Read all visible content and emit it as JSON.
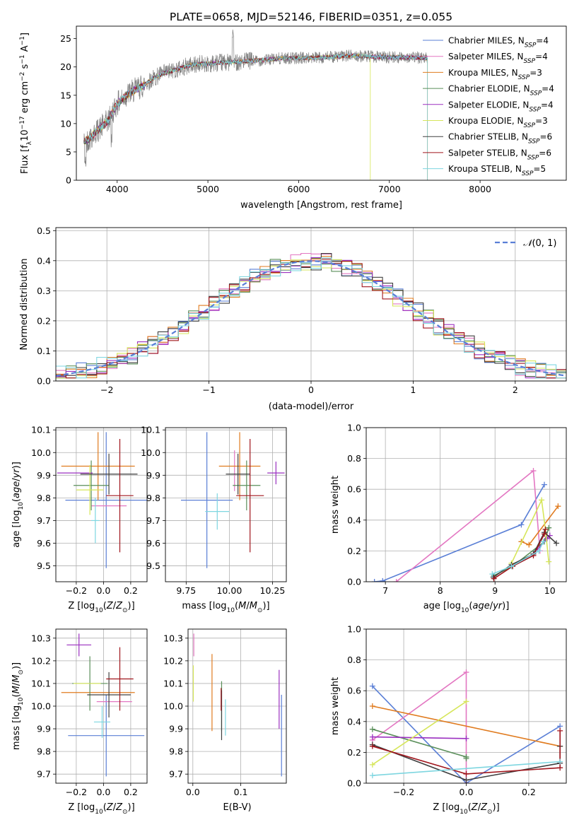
{
  "figure": {
    "title": "PLATE=0658, MJD=52146, FIBERID=0351, z=0.055"
  },
  "models": [
    {
      "label": "Chabrier MILES, N_SSP=4",
      "imf": "Chabrier",
      "lib": "MILES",
      "nssp": "4",
      "color": "#5a7fd6"
    },
    {
      "label": "Salpeter MILES, N_SSP=4",
      "imf": "Salpeter",
      "lib": "MILES",
      "nssp": "4",
      "color": "#e377c2"
    },
    {
      "label": "Kroupa MILES, N_SSP=3",
      "imf": "Kroupa",
      "lib": "MILES",
      "nssp": "3",
      "color": "#e07b1f"
    },
    {
      "label": "Chabrier ELODIE, N_SSP=4",
      "imf": "Chabrier",
      "lib": "ELODIE",
      "nssp": "4",
      "color": "#5a8f5a"
    },
    {
      "label": "Salpeter ELODIE, N_SSP=4",
      "imf": "Salpeter",
      "lib": "ELODIE",
      "nssp": "4",
      "color": "#9b30c0"
    },
    {
      "label": "Kroupa ELODIE, N_SSP=3",
      "imf": "Kroupa",
      "lib": "ELODIE",
      "nssp": "3",
      "color": "#d6e65a"
    },
    {
      "label": "Chabrier STELIB, N_SSP=6",
      "imf": "Chabrier",
      "lib": "STELIB",
      "nssp": "6",
      "color": "#404040"
    },
    {
      "label": "Salpeter STELIB, N_SSP=6",
      "imf": "Salpeter",
      "lib": "STELIB",
      "nssp": "6",
      "color": "#a0151c"
    },
    {
      "label": "Kroupa STELIB, N_SSP=5",
      "imf": "Kroupa",
      "lib": "STELIB",
      "nssp": "5",
      "color": "#7ed6e0"
    }
  ],
  "chart_data": [
    {
      "id": "spectrum",
      "type": "line",
      "xlabel": "wavelength [Angstrom, rest frame]",
      "ylabel": "Flux [f_λ10^-17 erg cm^-2 s^-1 A^-1]",
      "xlim": [
        3550,
        8950
      ],
      "ylim": [
        0,
        27.2
      ],
      "xticks": [
        4000,
        5000,
        6000,
        7000,
        8000
      ],
      "yticks": [
        0,
        5,
        10,
        15,
        20,
        25
      ],
      "grid": false,
      "legend": "top-right",
      "data_color": "#808080",
      "continuum": [
        [
          3620,
          6.5
        ],
        [
          3700,
          7.5
        ],
        [
          3800,
          9.0
        ],
        [
          3900,
          10.5
        ],
        [
          4000,
          13.5
        ],
        [
          4100,
          15.0
        ],
        [
          4200,
          16.0
        ],
        [
          4300,
          16.8
        ],
        [
          4400,
          18.0
        ],
        [
          4500,
          18.8
        ],
        [
          4600,
          19.3
        ],
        [
          4700,
          19.8
        ],
        [
          4800,
          20.3
        ],
        [
          4900,
          20.5
        ],
        [
          5000,
          20.6
        ],
        [
          5200,
          20.8
        ],
        [
          5400,
          21.0
        ],
        [
          5600,
          21.2
        ],
        [
          5800,
          21.5
        ],
        [
          6000,
          21.6
        ],
        [
          6200,
          21.6
        ],
        [
          6400,
          21.8
        ],
        [
          6600,
          22.0
        ],
        [
          6800,
          21.8
        ],
        [
          7000,
          21.7
        ],
        [
          7200,
          21.7
        ],
        [
          7400,
          21.6
        ]
      ],
      "model_drops": [
        null,
        null,
        7420,
        null,
        null,
        6790,
        null,
        null,
        7420
      ],
      "data_end": 7420
    },
    {
      "id": "residuals",
      "type": "histogram",
      "xlabel": "(data-model)/error",
      "ylabel": "Normed distribution",
      "xlim": [
        -2.5,
        2.5
      ],
      "ylim": [
        0,
        0.51
      ],
      "xticks": [
        -2,
        -1,
        0,
        1,
        2
      ],
      "yticks": [
        0.0,
        0.1,
        0.2,
        0.3,
        0.4,
        0.5
      ],
      "grid": true,
      "legend": "top-right",
      "reference_label": "N(0,1)",
      "reference_color": "#5a7fd6",
      "bin_width": 0.1
    },
    {
      "id": "age-vs-Z",
      "type": "scatter",
      "xlabel": "Z [log10(Z/Z☉)]",
      "ylabel": "age [log10(age/yr)]",
      "xlim": [
        -0.35,
        0.32
      ],
      "ylim": [
        9.43,
        10.11
      ],
      "xticks": [
        -0.2,
        0.0,
        0.2
      ],
      "xticklabels": [
        "−0.2",
        "0.0",
        "0.2"
      ],
      "yticks": [
        9.5,
        9.6,
        9.7,
        9.8,
        9.9,
        10.0,
        10.1
      ],
      "yticklabels": [
        "9.5",
        "9.6",
        "9.7",
        "9.8",
        "9.9",
        "10.0",
        "10.1"
      ],
      "grid": true,
      "points": [
        {
          "x": 0.02,
          "xerr": 0.3,
          "y": 9.79,
          "yerr": 0.3
        },
        {
          "x": 0.04,
          "xerr": 0.13,
          "y": 9.765,
          "yerr": 0.0
        },
        {
          "x": -0.04,
          "xerr": 0.27,
          "y": 9.94,
          "yerr": 0.15
        },
        {
          "x": -0.09,
          "xerr": 0.13,
          "y": 9.855,
          "yerr": 0.11
        },
        {
          "x": -0.21,
          "xerr": 0.13,
          "y": 9.91,
          "yerr": 0.0
        },
        {
          "x": -0.1,
          "xerr": 0.1,
          "y": 9.835,
          "yerr": 0.11
        },
        {
          "x": 0.04,
          "xerr": 0.21,
          "y": 9.905,
          "yerr": 0.09
        },
        {
          "x": 0.12,
          "xerr": 0.1,
          "y": 9.81,
          "yerr": 0.25
        },
        {
          "x": -0.06,
          "xerr": 0.03,
          "y": 9.7,
          "yerr": 0.1
        }
      ]
    },
    {
      "id": "age-vs-mass",
      "type": "scatter",
      "xlabel": "mass [log10(M/M☉)]",
      "ylabel": "",
      "xlim": [
        9.63,
        10.33
      ],
      "ylim": [
        9.43,
        10.11
      ],
      "xticks": [
        9.75,
        10.0,
        10.25
      ],
      "xticklabels": [
        "9.75",
        "10.00",
        "10.25"
      ],
      "yticks": [
        9.5,
        9.6,
        9.7,
        9.8,
        9.9,
        10.0,
        10.1
      ],
      "yticklabels": [
        "9.5",
        "9.6",
        "9.7",
        "9.8",
        "9.9",
        "10.0",
        "10.1"
      ],
      "grid": true,
      "points": [
        {
          "x": 9.87,
          "xerr": 0.15,
          "y": 9.79,
          "yerr": 0.3
        },
        {
          "x": 10.03,
          "xerr": 0.0,
          "y": 9.92,
          "yerr": 0.09
        },
        {
          "x": 10.06,
          "xerr": 0.12,
          "y": 9.94,
          "yerr": 0.15
        },
        {
          "x": 10.1,
          "xerr": 0.08,
          "y": 9.855,
          "yerr": 0.11
        },
        {
          "x": 10.27,
          "xerr": 0.05,
          "y": 9.91,
          "yerr": 0.05
        },
        {
          "x": 9.96,
          "xerr": 0.0,
          "y": 9.81,
          "yerr": 0.0
        },
        {
          "x": 10.05,
          "xerr": 0.07,
          "y": 9.905,
          "yerr": 0.09
        },
        {
          "x": 10.12,
          "xerr": 0.08,
          "y": 9.81,
          "yerr": 0.25
        },
        {
          "x": 9.93,
          "xerr": 0.07,
          "y": 9.74,
          "yerr": 0.08
        }
      ]
    },
    {
      "id": "weight-vs-age",
      "type": "line",
      "xlabel": "age [log10(age/yr)]",
      "ylabel": "mass weight",
      "xlim": [
        6.65,
        10.3
      ],
      "ylim": [
        0,
        1
      ],
      "xticks": [
        7,
        8,
        9,
        10
      ],
      "xticklabels": [
        "7",
        "8",
        "9",
        "10"
      ],
      "yticks": [
        0,
        0.2,
        0.4,
        0.6,
        0.8,
        1.0
      ],
      "yticklabels": [
        "0.0",
        "0.2",
        "0.4",
        "0.6",
        "0.8",
        "1.0"
      ],
      "grid": true,
      "series": [
        {
          "x": [
            6.8,
            6.95,
            9.48,
            9.9
          ],
          "y": [
            0.0,
            0.005,
            0.37,
            0.63
          ]
        },
        {
          "x": [
            7.2,
            9.7,
            9.82
          ],
          "y": [
            0.0,
            0.72,
            0.2
          ]
        },
        {
          "x": [
            9.48,
            9.62,
            10.15
          ],
          "y": [
            0.26,
            0.24,
            0.49
          ]
        },
        {
          "x": [
            8.98,
            9.32,
            9.9,
            9.98
          ],
          "y": [
            0.04,
            0.1,
            0.26,
            0.35
          ]
        },
        {
          "x": [
            9.7,
            9.95,
            10.0
          ],
          "y": [
            0.18,
            0.28,
            0.3
          ]
        },
        {
          "x": [
            9.3,
            9.85,
            9.92,
            9.98
          ],
          "y": [
            0.12,
            0.53,
            0.34,
            0.13
          ]
        },
        {
          "x": [
            8.97,
            9.3,
            9.7,
            9.9,
            10.12
          ],
          "y": [
            0.03,
            0.11,
            0.18,
            0.32,
            0.25
          ]
        },
        {
          "x": [
            8.98,
            9.32,
            9.7,
            9.9,
            9.92
          ],
          "y": [
            0.02,
            0.1,
            0.17,
            0.31,
            0.34
          ]
        },
        {
          "x": [
            8.95,
            9.3,
            9.8,
            9.88
          ],
          "y": [
            0.05,
            0.1,
            0.2,
            0.26
          ]
        }
      ]
    },
    {
      "id": "mass-vs-Z",
      "type": "scatter",
      "xlabel": "Z [log10(Z/Z☉)]",
      "ylabel": "mass [log10(M/M☉)]",
      "xlim": [
        -0.35,
        0.32
      ],
      "ylim": [
        9.66,
        10.34
      ],
      "xticks": [
        -0.2,
        0.0,
        0.2
      ],
      "xticklabels": [
        "−0.2",
        "0.0",
        "0.2"
      ],
      "yticks": [
        9.7,
        9.8,
        9.9,
        10.0,
        10.1,
        10.2,
        10.3
      ],
      "yticklabels": [
        "9.7",
        "9.8",
        "9.9",
        "10.0",
        "10.1",
        "10.2",
        "10.3"
      ],
      "grid": true,
      "points": [
        {
          "x": 0.02,
          "xerr": 0.28,
          "y": 9.87,
          "yerr": 0.18
        },
        {
          "x": 0.08,
          "xerr": 0.13,
          "y": 10.02,
          "yerr": 0.0
        },
        {
          "x": -0.04,
          "xerr": 0.27,
          "y": 10.06,
          "yerr": 0.0
        },
        {
          "x": -0.1,
          "xerr": 0.13,
          "y": 10.1,
          "yerr": 0.12
        },
        {
          "x": -0.18,
          "xerr": 0.09,
          "y": 10.27,
          "yerr": 0.05
        },
        {
          "x": -0.12,
          "xerr": 0.1,
          "y": 10.1,
          "yerr": 0.0
        },
        {
          "x": 0.04,
          "xerr": 0.16,
          "y": 10.05,
          "yerr": 0.1
        },
        {
          "x": 0.12,
          "xerr": 0.1,
          "y": 10.12,
          "yerr": 0.14
        },
        {
          "x": -0.01,
          "xerr": 0.06,
          "y": 9.93,
          "yerr": 0.07
        }
      ]
    },
    {
      "id": "mass-vs-EBV",
      "type": "scatter",
      "xlabel": "E(B-V)",
      "ylabel": "",
      "xlim": [
        -0.01,
        0.195
      ],
      "ylim": [
        9.66,
        10.34
      ],
      "xticks": [
        0.0,
        0.1
      ],
      "xticklabels": [
        "0.0",
        "0.1"
      ],
      "yticks": [
        9.7,
        9.8,
        9.9,
        10.0,
        10.1,
        10.2,
        10.3
      ],
      "yticklabels": [
        "9.7",
        "9.8",
        "9.9",
        "10.0",
        "10.1",
        "10.2",
        "10.3"
      ],
      "grid": true,
      "points": [
        {
          "x": 0.185,
          "xerr": 0.0,
          "y": 9.87,
          "yerr": 0.18
        },
        {
          "x": 0.002,
          "xerr": 0.0,
          "y": 10.27,
          "yerr": 0.05
        },
        {
          "x": 0.04,
          "xerr": 0.0,
          "y": 10.06,
          "yerr": 0.17
        },
        {
          "x": 0.06,
          "xerr": 0.0,
          "y": 10.0,
          "yerr": 0.11
        },
        {
          "x": 0.18,
          "xerr": 0.0,
          "y": 10.03,
          "yerr": 0.13
        },
        {
          "x": 0.001,
          "xerr": 0.0,
          "y": 10.1,
          "yerr": 0.08
        },
        {
          "x": 0.06,
          "xerr": 0.0,
          "y": 9.96,
          "yerr": 0.11
        },
        {
          "x": 0.059,
          "xerr": 0.0,
          "y": 10.03,
          "yerr": 0.05
        },
        {
          "x": 0.068,
          "xerr": 0.0,
          "y": 9.95,
          "yerr": 0.08
        }
      ]
    },
    {
      "id": "weight-vs-Z",
      "type": "line",
      "xlabel": "Z [log10(Z/Z☉)]",
      "ylabel": "mass weight",
      "xlim": [
        -0.32,
        0.32
      ],
      "ylim": [
        0,
        1
      ],
      "xticks": [
        -0.2,
        0.0,
        0.2
      ],
      "xticklabels": [
        "−0.2",
        "0.0",
        "0.2"
      ],
      "yticks": [
        0,
        0.2,
        0.4,
        0.6,
        0.8,
        1.0
      ],
      "yticklabels": [
        "0.0",
        "0.2",
        "0.4",
        "0.6",
        "0.8",
        "1.0"
      ],
      "grid": true,
      "series": [
        {
          "x": [
            -0.3,
            0.0,
            0.3
          ],
          "y": [
            0.63,
            0.0,
            0.37
          ]
        },
        {
          "x": [
            -0.3,
            0.0,
            0.0
          ],
          "y": [
            0.28,
            0.72,
            0.0
          ]
        },
        {
          "x": [
            -0.3,
            0.3
          ],
          "y": [
            0.5,
            0.24
          ]
        },
        {
          "x": [
            -0.3,
            0.0,
            0.0
          ],
          "y": [
            0.35,
            0.17,
            0.16
          ]
        },
        {
          "x": [
            -0.3,
            0.0
          ],
          "y": [
            0.3,
            0.29
          ]
        },
        {
          "x": [
            -0.3,
            0.0
          ],
          "y": [
            0.12,
            0.53
          ]
        },
        {
          "x": [
            -0.3,
            0.0,
            0.3,
            0.3
          ],
          "y": [
            0.25,
            0.02,
            0.13,
            0.24
          ]
        },
        {
          "x": [
            -0.3,
            0.0,
            0.3,
            0.3
          ],
          "y": [
            0.24,
            0.06,
            0.1,
            0.34
          ]
        },
        {
          "x": [
            -0.3,
            0.3
          ],
          "y": [
            0.05,
            0.14
          ]
        }
      ]
    }
  ]
}
